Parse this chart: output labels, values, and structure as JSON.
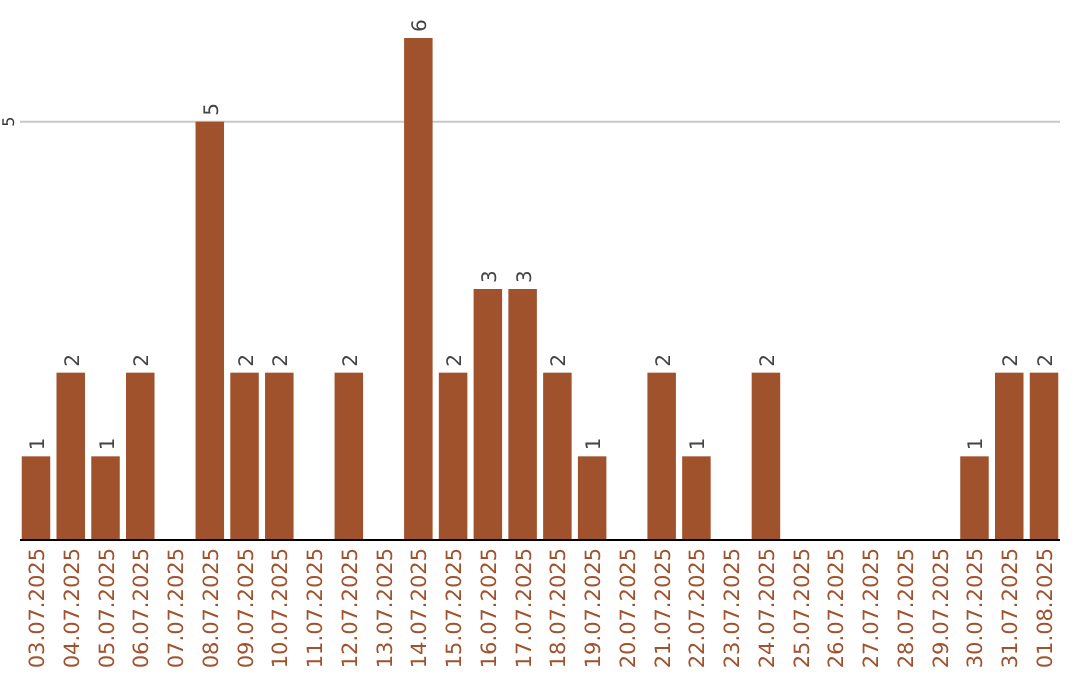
{
  "chart_data": {
    "type": "bar",
    "categories": [
      "03.07.2025",
      "04.07.2025",
      "05.07.2025",
      "06.07.2025",
      "07.07.2025",
      "08.07.2025",
      "09.07.2025",
      "10.07.2025",
      "11.07.2025",
      "12.07.2025",
      "13.07.2025",
      "14.07.2025",
      "15.07.2025",
      "16.07.2025",
      "17.07.2025",
      "18.07.2025",
      "19.07.2025",
      "20.07.2025",
      "21.07.2025",
      "22.07.2025",
      "23.07.2025",
      "24.07.2025",
      "25.07.2025",
      "26.07.2025",
      "27.07.2025",
      "28.07.2025",
      "29.07.2025",
      "30.07.2025",
      "31.07.2025",
      "01.08.2025"
    ],
    "values": [
      1,
      2,
      1,
      2,
      0,
      5,
      2,
      2,
      0,
      2,
      0,
      6,
      2,
      3,
      3,
      2,
      1,
      0,
      2,
      1,
      0,
      2,
      0,
      0,
      0,
      0,
      0,
      1,
      2,
      2
    ],
    "value_labels": [
      "1",
      "2",
      "1",
      "2",
      null,
      "5",
      "2",
      "2",
      null,
      "2",
      null,
      "6",
      "2",
      "3",
      "3",
      "2",
      "1",
      null,
      "2",
      "1",
      null,
      "2",
      null,
      null,
      null,
      null,
      null,
      "1",
      "2",
      "2"
    ],
    "color": "#a0522d",
    "ref_lines": [
      {
        "axis": "y",
        "value": 5,
        "label": "5",
        "color": "#c8c8c8"
      }
    ]
  }
}
